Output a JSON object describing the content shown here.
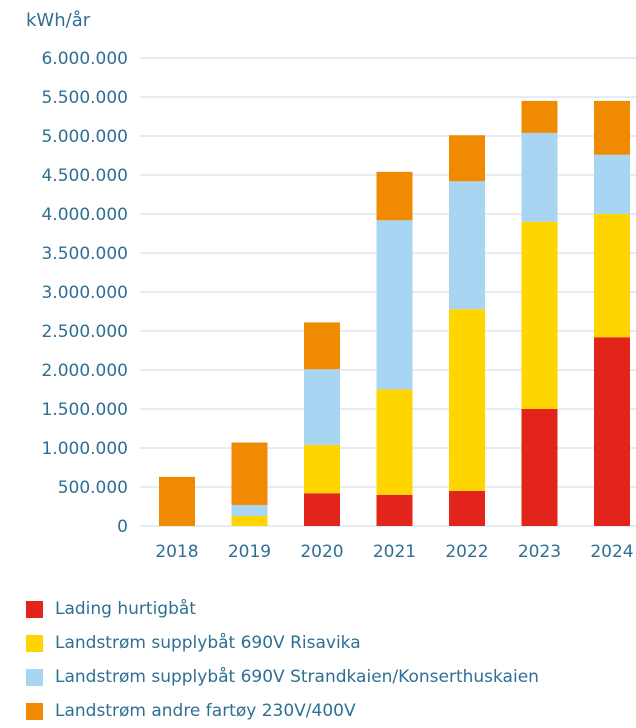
{
  "chart_data": {
    "type": "bar",
    "stacked": true,
    "ylabel": "kWh/år",
    "ylim": [
      0,
      6000000
    ],
    "y_ticks": [
      0,
      500000,
      1000000,
      1500000,
      2000000,
      2500000,
      3000000,
      3500000,
      4000000,
      4500000,
      5000000,
      5500000,
      6000000
    ],
    "y_tick_labels": [
      "0",
      "500.000",
      "1.000.000",
      "1.500.000",
      "2.000.000",
      "2.500.000",
      "3.000.000",
      "3.500.000",
      "4.000.000",
      "4.500.000",
      "5.000.000",
      "5.500.000",
      "6.000.000"
    ],
    "grid": true,
    "legend_position": "bottom",
    "categories": [
      "2018",
      "2019",
      "2020",
      "2021",
      "2022",
      "2023",
      "2024"
    ],
    "series": [
      {
        "name": "Lading hurtigbåt",
        "color": "#e3241b",
        "values": [
          0,
          0,
          420000,
          400000,
          450000,
          1500000,
          2420000
        ]
      },
      {
        "name": "Landstrøm supplybåt 690V Risavika",
        "color": "#ffd500",
        "values": [
          0,
          130000,
          620000,
          1350000,
          2330000,
          2400000,
          1580000
        ]
      },
      {
        "name": "Landstrøm supplybåt 690V Strandkaien/Konserthuskaien",
        "color": "#a8d5f2",
        "values": [
          0,
          140000,
          970000,
          2170000,
          1640000,
          1140000,
          760000
        ]
      },
      {
        "name": "Landstrøm andre fartøy 230V/400V",
        "color": "#f08a00",
        "values": [
          630000,
          800000,
          600000,
          620000,
          590000,
          410000,
          690000
        ]
      }
    ]
  }
}
